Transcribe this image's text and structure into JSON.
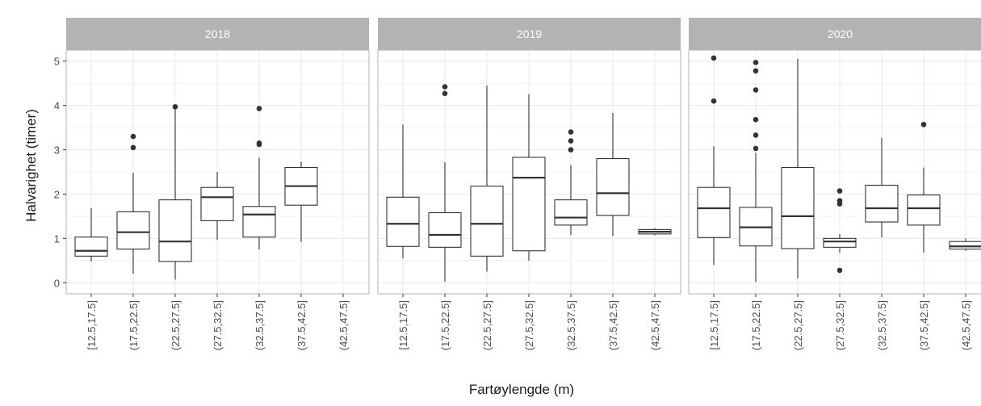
{
  "chart_data": {
    "type": "boxplot",
    "xlabel": "Fartøylengde (m)",
    "ylabel": "Halvarighet (timer)",
    "ylim": [
      -0.25,
      5.25
    ],
    "yticks": [
      "0",
      "1",
      "2",
      "3",
      "4",
      "5"
    ],
    "ytick_values": [
      0,
      1,
      2,
      3,
      4,
      5
    ],
    "categories": [
      "[12.5,17.5]",
      "(17.5,22.5]",
      "(22.5,27.5]",
      "(27.5,32.5]",
      "(32.5,37.5]",
      "(37.5,42.5]",
      "(42.5,47.5]"
    ],
    "grid": true,
    "colors": {
      "strip": "#b3b3b3",
      "grid": "#ebebeb",
      "box": "#333333",
      "border": "#b3b3b3"
    },
    "panels": [
      {
        "title": "2018",
        "boxes": [
          {
            "category": "[12.5,17.5]",
            "min": 0.48,
            "q1": 0.6,
            "median": 0.72,
            "q3": 1.03,
            "max": 1.68,
            "outliers": []
          },
          {
            "category": "(17.5,22.5]",
            "min": 0.2,
            "q1": 0.76,
            "median": 1.14,
            "q3": 1.6,
            "max": 2.48,
            "outliers": [
              3.05,
              3.3
            ]
          },
          {
            "category": "(22.5,27.5]",
            "min": 0.07,
            "q1": 0.48,
            "median": 0.93,
            "q3": 1.87,
            "max": 3.95,
            "outliers": [
              3.97
            ]
          },
          {
            "category": "(27.5,32.5]",
            "min": 0.97,
            "q1": 1.4,
            "median": 1.93,
            "q3": 2.15,
            "max": 2.5,
            "outliers": []
          },
          {
            "category": "(32.5,37.5]",
            "min": 0.75,
            "q1": 1.03,
            "median": 1.54,
            "q3": 1.72,
            "max": 2.82,
            "outliers": [
              3.12,
              3.15,
              3.93
            ]
          },
          {
            "category": "(37.5,42.5]",
            "min": 0.92,
            "q1": 1.75,
            "median": 2.18,
            "q3": 2.6,
            "max": 2.73,
            "outliers": []
          }
        ]
      },
      {
        "title": "2019",
        "boxes": [
          {
            "category": "[12.5,17.5]",
            "min": 0.55,
            "q1": 0.82,
            "median": 1.33,
            "q3": 1.93,
            "max": 3.57,
            "outliers": []
          },
          {
            "category": "(17.5,22.5]",
            "min": 0.02,
            "q1": 0.8,
            "median": 1.08,
            "q3": 1.58,
            "max": 2.72,
            "outliers": [
              4.27,
              4.42
            ]
          },
          {
            "category": "(22.5,27.5]",
            "min": 0.25,
            "q1": 0.6,
            "median": 1.33,
            "q3": 2.18,
            "max": 4.45,
            "outliers": []
          },
          {
            "category": "(27.5,32.5]",
            "min": 0.5,
            "q1": 0.72,
            "median": 2.37,
            "q3": 2.83,
            "max": 4.25,
            "outliers": []
          },
          {
            "category": "(32.5,37.5]",
            "min": 1.08,
            "q1": 1.3,
            "median": 1.47,
            "q3": 1.87,
            "max": 2.65,
            "outliers": [
              3.0,
              3.2,
              3.4
            ]
          },
          {
            "category": "(37.5,42.5]",
            "min": 1.05,
            "q1": 1.52,
            "median": 2.02,
            "q3": 2.8,
            "max": 3.83,
            "outliers": []
          },
          {
            "category": "(42.5,47.5]",
            "min": 1.07,
            "q1": 1.1,
            "median": 1.15,
            "q3": 1.2,
            "max": 1.23,
            "outliers": []
          }
        ]
      },
      {
        "title": "2020",
        "boxes": [
          {
            "category": "[12.5,17.5]",
            "min": 0.4,
            "q1": 1.02,
            "median": 1.68,
            "q3": 2.15,
            "max": 3.08,
            "outliers": [
              4.1,
              5.07
            ]
          },
          {
            "category": "(17.5,22.5]",
            "min": 0.02,
            "q1": 0.83,
            "median": 1.25,
            "q3": 1.7,
            "max": 2.93,
            "outliers": [
              3.03,
              3.33,
              3.68,
              4.35,
              4.78,
              4.97
            ]
          },
          {
            "category": "(22.5,27.5]",
            "min": 0.1,
            "q1": 0.77,
            "median": 1.5,
            "q3": 2.6,
            "max": 5.05,
            "outliers": []
          },
          {
            "category": "(27.5,32.5]",
            "min": 0.68,
            "q1": 0.8,
            "median": 0.93,
            "q3": 1.0,
            "max": 1.1,
            "outliers": [
              0.28,
              1.78,
              1.85,
              2.07
            ]
          },
          {
            "category": "(32.5,37.5]",
            "min": 1.02,
            "q1": 1.37,
            "median": 1.68,
            "q3": 2.2,
            "max": 3.27,
            "outliers": []
          },
          {
            "category": "(37.5,42.5]",
            "min": 0.68,
            "q1": 1.3,
            "median": 1.68,
            "q3": 1.98,
            "max": 2.6,
            "outliers": [
              3.57
            ]
          },
          {
            "category": "(42.5,47.5]",
            "min": 0.72,
            "q1": 0.76,
            "median": 0.82,
            "q3": 0.93,
            "max": 1.0,
            "outliers": []
          }
        ]
      }
    ]
  }
}
